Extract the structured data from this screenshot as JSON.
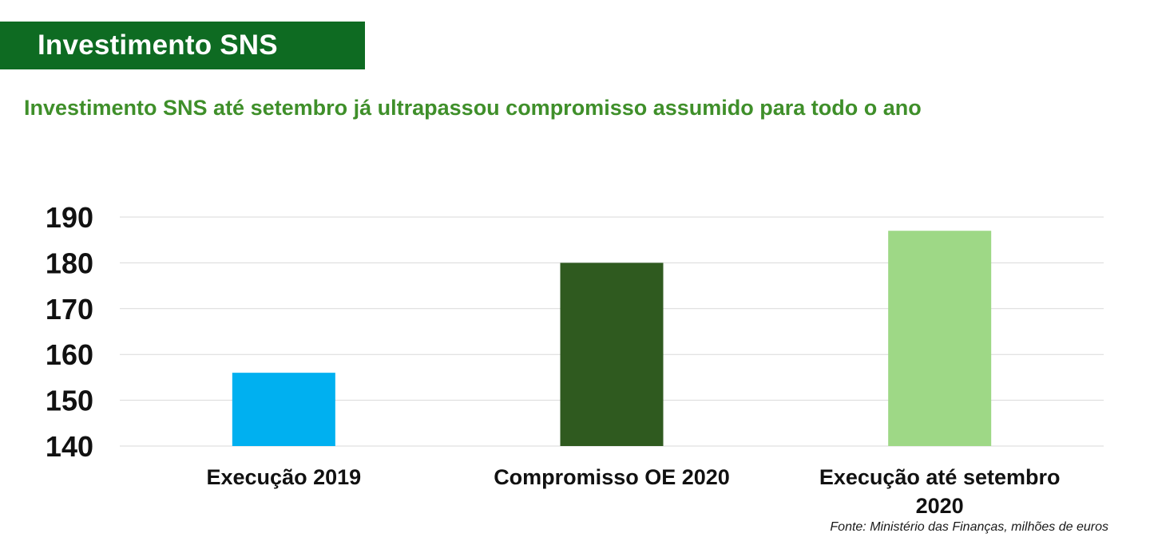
{
  "slide": {
    "title": "Investimento SNS",
    "subtitle": "Investimento SNS até setembro já ultrapassou compromisso assumido para todo o ano",
    "source": "Fonte: Ministério das Finanças, milhões de euros",
    "colors": {
      "banner": "#0e6b22",
      "subtitle": "#3f8f2a"
    }
  },
  "chart_data": {
    "type": "bar",
    "categories": [
      "Execução 2019",
      "Compromisso OE 2020",
      "Execução até setembro 2020"
    ],
    "category_lines": [
      [
        "Execução 2019"
      ],
      [
        "Compromisso OE 2020"
      ],
      [
        "Execução até setembro",
        "2020"
      ]
    ],
    "values": [
      156,
      180,
      187
    ],
    "bar_colors": [
      "#00b0f0",
      "#2f5a1f",
      "#9ed886"
    ],
    "ylim": [
      140,
      190
    ],
    "yticks": [
      140,
      150,
      160,
      170,
      180,
      190
    ],
    "grid": true,
    "legend": "none",
    "xlabel": "",
    "ylabel": ""
  }
}
